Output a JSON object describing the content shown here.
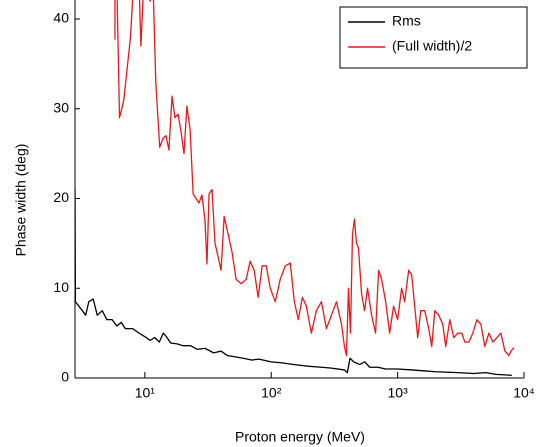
{
  "chart_data": {
    "type": "line",
    "xlabel": "Proton energy (MeV)",
    "ylabel": "Phase width (deg)",
    "xscale": "log",
    "xlim": [
      2.8,
      10000
    ],
    "ylim": [
      0,
      40
    ],
    "xticks": [
      {
        "value": 10,
        "label": "10¹"
      },
      {
        "value": 100,
        "label": "10²"
      },
      {
        "value": 1000,
        "label": "10³"
      },
      {
        "value": 10000,
        "label": "10⁴"
      }
    ],
    "yticks": [
      0,
      10,
      20,
      30,
      40
    ],
    "legend": "top-right",
    "series": [
      {
        "name": "Rms",
        "color": "#000000",
        "x": [
          2.8,
          2.82,
          3.2,
          3.4,
          3.6,
          3.9,
          4.2,
          4.6,
          5,
          5.5,
          6,
          6.5,
          7,
          8,
          9,
          10,
          11,
          12,
          13,
          14,
          15,
          16,
          18,
          20,
          23,
          26,
          30,
          35,
          40,
          45,
          50,
          60,
          70,
          80,
          100,
          120,
          150,
          200,
          250,
          300,
          380,
          400,
          420,
          450,
          500,
          550,
          600,
          700,
          800,
          1000,
          1300,
          1600,
          2000,
          3000,
          4000,
          5000,
          6000,
          8000
        ],
        "values": [
          21,
          8.5,
          7.5,
          7,
          8.5,
          8.8,
          7,
          7.5,
          6.5,
          6.5,
          5.8,
          6.2,
          5.5,
          5.5,
          5,
          4.6,
          4.2,
          4.5,
          4,
          5,
          4.5,
          3.9,
          3.8,
          3.6,
          3.6,
          3.2,
          3.3,
          2.8,
          3,
          2.5,
          2.4,
          2.2,
          2,
          2.1,
          1.8,
          1.7,
          1.5,
          1.3,
          1.2,
          1.1,
          0.9,
          0.6,
          2.2,
          1.8,
          1.5,
          1.8,
          1.2,
          1.2,
          1,
          1,
          0.9,
          0.8,
          0.7,
          0.6,
          0.5,
          0.6,
          0.4,
          0.3
        ]
      },
      {
        "name": "(Full width)/2",
        "color": "#e8191c",
        "x": [
          5.8,
          5.8,
          5.9,
          6.0,
          6.3,
          6.8,
          7.7,
          8.2,
          9.0,
          9.3,
          9.8,
          11.0,
          11.6,
          12.2,
          13.1,
          13.9,
          14.7,
          15.5,
          16.4,
          17.3,
          18.3,
          19.3,
          20.4,
          21.5,
          22.8,
          24.1,
          25.4,
          26.8,
          28.3,
          29.9,
          31.0,
          32.2,
          34.0,
          35.9,
          38.0,
          40.1,
          42.4,
          45.6,
          49.0,
          52.7,
          57.8,
          63.4,
          68.1,
          73.3,
          78.8,
          84.8,
          91.3,
          98.2,
          107.6,
          117.8,
          129.1,
          141.5,
          152.3,
          163.8,
          176.3,
          189.6,
          207.8,
          227.6,
          249.4,
          273.3,
          299.5,
          328.1,
          359.5,
          379.6,
          393.9,
          408.3,
          423.6,
          439.3,
          455.7,
          472.7,
          490,
          517.6,
          547,
          578,
          622,
          669,
          707,
          747,
          804,
          865,
          929,
          1000,
          1076,
          1137,
          1223,
          1292,
          1365,
          1442,
          1524,
          1638,
          1763,
          1862,
          1968,
          2115,
          2275,
          2403,
          2587,
          2780,
          2993,
          3221,
          3404,
          3659,
          3936,
          4236,
          4560,
          4898,
          5272,
          5675,
          6109,
          6561,
          7063,
          7603,
          7889,
          8337
        ],
        "values": [
          44,
          37.7,
          null,
          44,
          29.0,
          30.9,
          38,
          45,
          44,
          37,
          44,
          42,
          44,
          33,
          25.7,
          26.7,
          27,
          25.4,
          31.4,
          29,
          29.4,
          27.5,
          25,
          30.3,
          27.7,
          20.5,
          20,
          19.5,
          20.4,
          17.6,
          12.7,
          20.5,
          21,
          15,
          13.5,
          12,
          18,
          16,
          14,
          11,
          10.5,
          11,
          13,
          12,
          9,
          12.5,
          12.5,
          10,
          8.5,
          11,
          12.5,
          12.8,
          8.5,
          6.5,
          9,
          8,
          5,
          7.5,
          8.5,
          5.5,
          7,
          8.5,
          6,
          3.5,
          2.5,
          10,
          5,
          16,
          17.7,
          15,
          14.5,
          9.5,
          7.5,
          10,
          7,
          5,
          12,
          11,
          8.5,
          5,
          8,
          6.5,
          10,
          8.5,
          12,
          11.5,
          8,
          4.5,
          7.5,
          7.5,
          5.5,
          3.5,
          7.5,
          7,
          6,
          3.5,
          6.5,
          4.5,
          5,
          5,
          4,
          4,
          5,
          6.5,
          6,
          3.5,
          5,
          4,
          4.5,
          5,
          3,
          2.5,
          3,
          3.4
        ]
      }
    ]
  }
}
